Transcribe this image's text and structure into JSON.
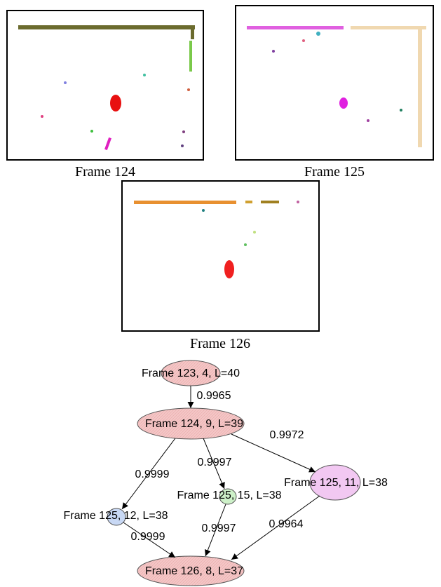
{
  "frames": [
    {
      "label": "Frame 124"
    },
    {
      "label": "Frame 125"
    },
    {
      "label": "Frame 126"
    }
  ],
  "graph": {
    "nodes": [
      {
        "label": "Frame 123, 4, L=40"
      },
      {
        "label": "Frame 124, 9, L=39"
      },
      {
        "label": "Frame 125, 12, L=38"
      },
      {
        "label": "Frame 125, 15, L=38"
      },
      {
        "label": "Frame 125, 11, L=38"
      },
      {
        "label": "Frame 126, 8, L=37"
      }
    ],
    "edges": [
      {
        "label": "0.9965"
      },
      {
        "label": "0.9999"
      },
      {
        "label": "0.9997"
      },
      {
        "label": "0.9972"
      },
      {
        "label": "0.9999"
      },
      {
        "label": "0.9997"
      },
      {
        "label": "0.9964"
      }
    ]
  }
}
